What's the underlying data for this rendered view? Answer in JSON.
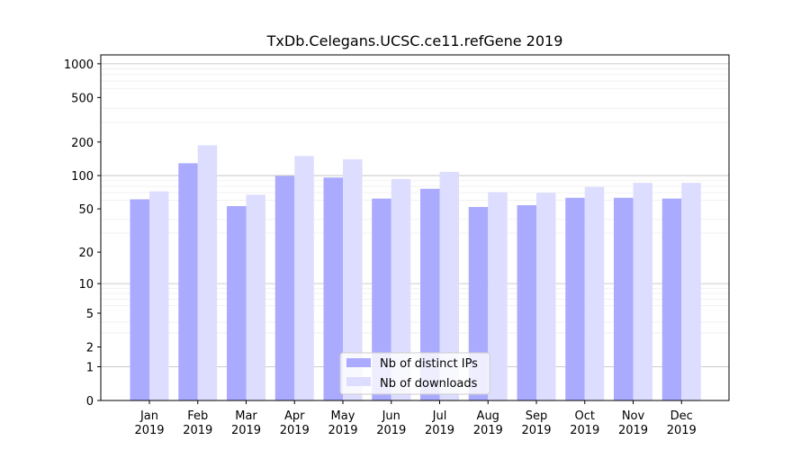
{
  "chart_data": {
    "type": "bar",
    "title": "TxDb.Celegans.UCSC.ce11.refGene 2019",
    "xlabel": "",
    "ylabel": "",
    "yscale": "log1p",
    "ylim": [
      0,
      1200
    ],
    "yticks": [
      0,
      1,
      2,
      5,
      10,
      20,
      50,
      100,
      200,
      500,
      1000
    ],
    "grid": "y",
    "legend_position": "bottom-center",
    "categories": [
      [
        "Jan",
        "2019"
      ],
      [
        "Feb",
        "2019"
      ],
      [
        "Mar",
        "2019"
      ],
      [
        "Apr",
        "2019"
      ],
      [
        "May",
        "2019"
      ],
      [
        "Jun",
        "2019"
      ],
      [
        "Jul",
        "2019"
      ],
      [
        "Aug",
        "2019"
      ],
      [
        "Sep",
        "2019"
      ],
      [
        "Oct",
        "2019"
      ],
      [
        "Nov",
        "2019"
      ],
      [
        "Dec",
        "2019"
      ]
    ],
    "series": [
      {
        "name": "Nb of distinct IPs",
        "color": "#aaaaff",
        "values": [
          61,
          129,
          53,
          99,
          96,
          62,
          76,
          52,
          54,
          63,
          63,
          62
        ]
      },
      {
        "name": "Nb of downloads",
        "color": "#ddddff",
        "values": [
          72,
          187,
          67,
          150,
          140,
          93,
          108,
          71,
          70,
          79,
          86,
          86
        ]
      }
    ]
  }
}
